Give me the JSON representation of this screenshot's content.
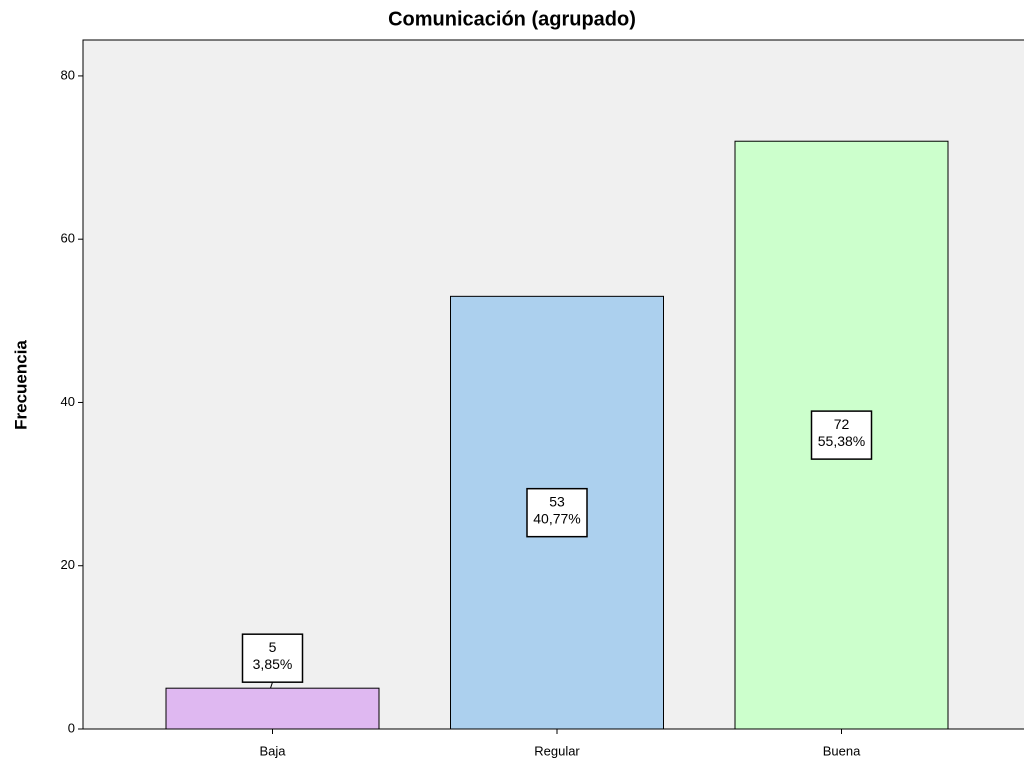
{
  "chart_data": {
    "type": "bar",
    "title": "Comunicación (agrupado)",
    "y_label": "Frecuencia",
    "categories": [
      "Baja",
      "Regular",
      "Buena"
    ],
    "values": [
      5,
      53,
      72
    ],
    "percentage_labels": [
      "3,85%",
      "40,77%",
      "55,38%"
    ],
    "colors": [
      "#dfb8f1",
      "#acd0ee",
      "#ccffcc"
    ],
    "ylim": [
      0,
      84.4
    ],
    "yticks": [
      0,
      20,
      40,
      60,
      80
    ],
    "grid": false
  }
}
